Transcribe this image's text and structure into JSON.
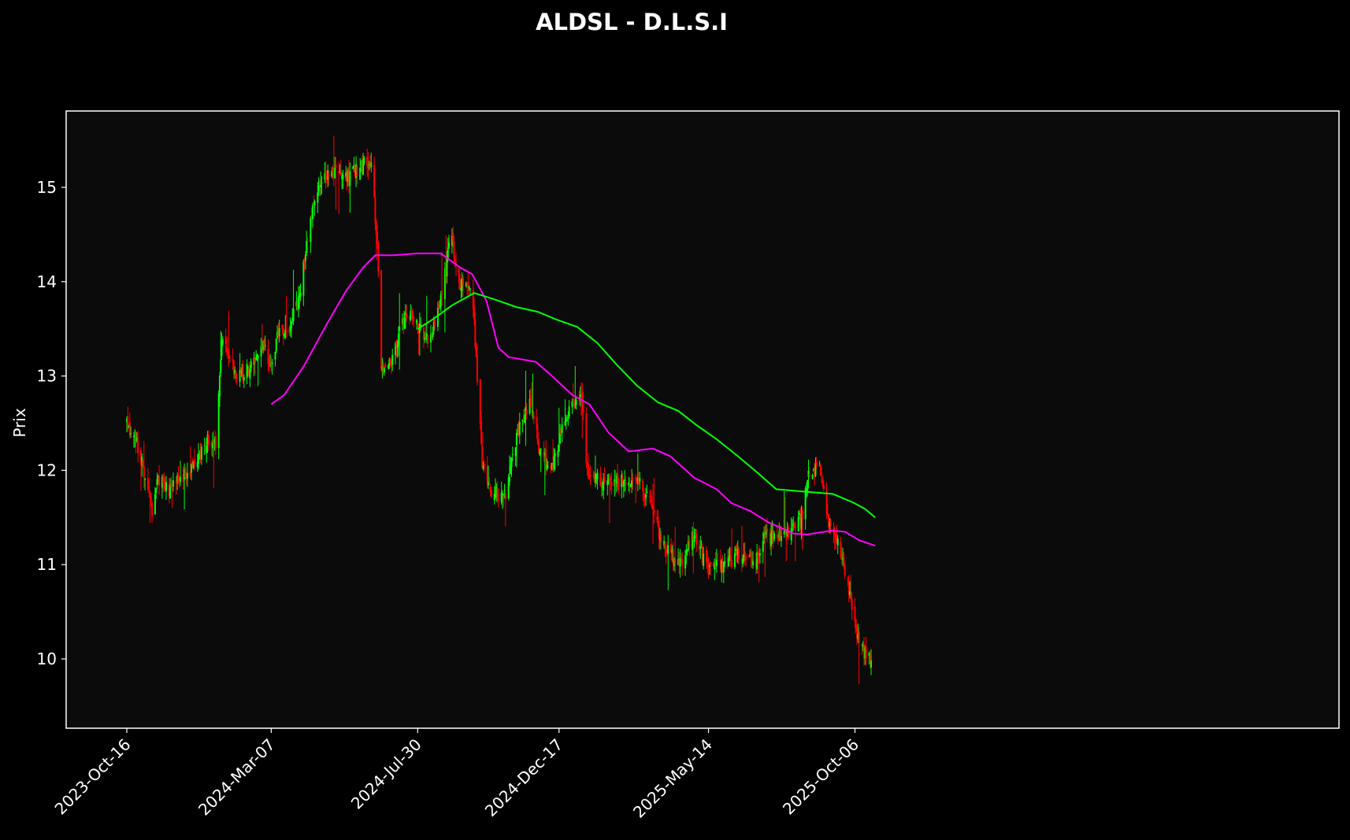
{
  "chart_data": {
    "type": "candlestick",
    "title": "ALDSL - D.L.S.I",
    "ylabel": "Prix",
    "xlabel": "",
    "x_range": [
      "2023-10-16",
      "2025-10-26"
    ],
    "ylim": [
      9.25,
      15.8
    ],
    "grid": false,
    "colors": {
      "background": "#000000",
      "plot_background": "#0b0b0b",
      "up": "#00ff00",
      "down": "#ff0000",
      "ma_fast": "#ff00ff",
      "ma_slow": "#00ff00",
      "text": "#ffffff"
    },
    "x_ticks": [
      {
        "date": "2023-10-16",
        "label": "2023-Oct-16"
      },
      {
        "date": "2024-03-07",
        "label": "2024-Mar-07"
      },
      {
        "date": "2024-07-30",
        "label": "2024-Jul-30"
      },
      {
        "date": "2024-12-17",
        "label": "2024-Dec-17"
      },
      {
        "date": "2025-05-14",
        "label": "2025-May-14"
      },
      {
        "date": "2025-10-06",
        "label": "2025-Oct-06"
      }
    ],
    "y_ticks": [
      10,
      11,
      12,
      13,
      14,
      15
    ],
    "price_path": [
      [
        "2023-10-16",
        12.5
      ],
      [
        "2023-10-26",
        12.3
      ],
      [
        "2023-11-02",
        12.0
      ],
      [
        "2023-11-10",
        11.6
      ],
      [
        "2023-11-16",
        11.9
      ],
      [
        "2023-11-28",
        11.8
      ],
      [
        "2023-12-08",
        11.9
      ],
      [
        "2023-12-18",
        12.0
      ],
      [
        "2024-01-02",
        12.3
      ],
      [
        "2024-01-12",
        12.3
      ],
      [
        "2024-01-18",
        13.4
      ],
      [
        "2024-01-28",
        13.1
      ],
      [
        "2024-02-05",
        13.0
      ],
      [
        "2024-02-18",
        13.1
      ],
      [
        "2024-02-28",
        13.3
      ],
      [
        "2024-03-08",
        13.1
      ],
      [
        "2024-03-14",
        13.5
      ],
      [
        "2024-03-24",
        13.5
      ],
      [
        "2024-04-04",
        13.8
      ],
      [
        "2024-04-12",
        14.5
      ],
      [
        "2024-04-22",
        15.0
      ],
      [
        "2024-05-06",
        15.2
      ],
      [
        "2024-05-20",
        15.1
      ],
      [
        "2024-06-02",
        15.2
      ],
      [
        "2024-06-14",
        15.3
      ],
      [
        "2024-06-20",
        14.4
      ],
      [
        "2024-06-24",
        13.1
      ],
      [
        "2024-07-04",
        13.1
      ],
      [
        "2024-07-12",
        13.5
      ],
      [
        "2024-07-20",
        13.7
      ],
      [
        "2024-07-30",
        13.5
      ],
      [
        "2024-08-10",
        13.4
      ],
      [
        "2024-08-22",
        13.8
      ],
      [
        "2024-09-01",
        14.5
      ],
      [
        "2024-09-08",
        14.0
      ],
      [
        "2024-09-22",
        13.9
      ],
      [
        "2024-10-02",
        12.1
      ],
      [
        "2024-10-10",
        11.8
      ],
      [
        "2024-10-24",
        11.7
      ],
      [
        "2024-11-06",
        12.4
      ],
      [
        "2024-11-18",
        12.7
      ],
      [
        "2024-11-28",
        12.2
      ],
      [
        "2024-12-10",
        12.0
      ],
      [
        "2024-12-24",
        12.6
      ],
      [
        "2025-01-08",
        12.8
      ],
      [
        "2025-01-14",
        12.0
      ],
      [
        "2025-01-28",
        11.9
      ],
      [
        "2025-02-18",
        11.9
      ],
      [
        "2025-03-04",
        11.9
      ],
      [
        "2025-03-20",
        11.6
      ],
      [
        "2025-03-30",
        11.2
      ],
      [
        "2025-04-16",
        11.0
      ],
      [
        "2025-04-28",
        11.3
      ],
      [
        "2025-05-12",
        11.0
      ],
      [
        "2025-05-30",
        11.0
      ],
      [
        "2025-06-12",
        11.1
      ],
      [
        "2025-06-28",
        11.0
      ],
      [
        "2025-07-10",
        11.3
      ],
      [
        "2025-07-28",
        11.3
      ],
      [
        "2025-08-14",
        11.5
      ],
      [
        "2025-08-22",
        12.0
      ],
      [
        "2025-09-02",
        12.0
      ],
      [
        "2025-09-10",
        11.4
      ],
      [
        "2025-09-20",
        11.2
      ],
      [
        "2025-10-02",
        10.6
      ],
      [
        "2025-10-12",
        10.1
      ],
      [
        "2025-10-22",
        10.0
      ]
    ],
    "series": [
      {
        "name": "",
        "type": "line",
        "color": "#ff00ff",
        "points": [
          [
            "2024-03-07",
            12.7
          ],
          [
            "2024-03-20",
            12.8
          ],
          [
            "2024-04-08",
            13.1
          ],
          [
            "2024-05-01",
            13.55
          ],
          [
            "2024-05-20",
            13.9
          ],
          [
            "2024-06-06",
            14.15
          ],
          [
            "2024-06-18",
            14.28
          ],
          [
            "2024-07-06",
            14.28
          ],
          [
            "2024-07-30",
            14.3
          ],
          [
            "2024-08-22",
            14.3
          ],
          [
            "2024-09-10",
            14.15
          ],
          [
            "2024-09-22",
            14.08
          ],
          [
            "2024-10-06",
            13.8
          ],
          [
            "2024-10-18",
            13.3
          ],
          [
            "2024-10-28",
            13.2
          ],
          [
            "2024-11-24",
            13.15
          ],
          [
            "2024-12-10",
            13.0
          ],
          [
            "2024-12-30",
            12.8
          ],
          [
            "2025-01-16",
            12.7
          ],
          [
            "2025-02-04",
            12.4
          ],
          [
            "2025-02-24",
            12.2
          ],
          [
            "2025-03-20",
            12.23
          ],
          [
            "2025-04-06",
            12.15
          ],
          [
            "2025-04-30",
            11.92
          ],
          [
            "2025-05-22",
            11.8
          ],
          [
            "2025-06-06",
            11.65
          ],
          [
            "2025-06-24",
            11.57
          ],
          [
            "2025-07-12",
            11.45
          ],
          [
            "2025-08-06",
            11.33
          ],
          [
            "2025-08-20",
            11.32
          ],
          [
            "2025-09-12",
            11.36
          ],
          [
            "2025-09-26",
            11.35
          ],
          [
            "2025-10-10",
            11.26
          ],
          [
            "2025-10-26",
            11.2
          ]
        ]
      },
      {
        "name": "",
        "type": "line",
        "color": "#00ff00",
        "points": [
          [
            "2024-07-30",
            13.5
          ],
          [
            "2024-08-14",
            13.6
          ],
          [
            "2024-09-02",
            13.75
          ],
          [
            "2024-09-24",
            13.88
          ],
          [
            "2024-10-12",
            13.82
          ],
          [
            "2024-11-05",
            13.73
          ],
          [
            "2024-11-26",
            13.68
          ],
          [
            "2024-12-14",
            13.6
          ],
          [
            "2025-01-04",
            13.52
          ],
          [
            "2025-01-24",
            13.35
          ],
          [
            "2025-02-12",
            13.12
          ],
          [
            "2025-03-04",
            12.9
          ],
          [
            "2025-03-25",
            12.72
          ],
          [
            "2025-04-14",
            12.63
          ],
          [
            "2025-05-02",
            12.48
          ],
          [
            "2025-05-22",
            12.33
          ],
          [
            "2025-06-12",
            12.15
          ],
          [
            "2025-07-02",
            11.97
          ],
          [
            "2025-07-20",
            11.8
          ],
          [
            "2025-08-22",
            11.77
          ],
          [
            "2025-09-14",
            11.75
          ],
          [
            "2025-10-04",
            11.66
          ],
          [
            "2025-10-16",
            11.59
          ],
          [
            "2025-10-26",
            11.5
          ]
        ]
      }
    ]
  }
}
